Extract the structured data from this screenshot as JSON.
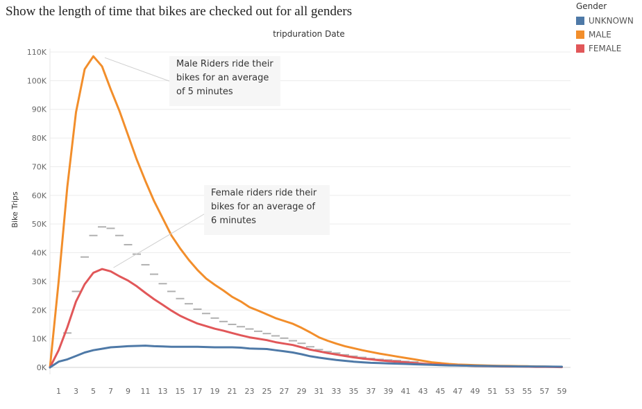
{
  "title": "Show the length of time that bikes are checked out for all genders",
  "legend": {
    "title": "Gender",
    "items": [
      {
        "label": "UNKNOWN",
        "color": "#4e79a7"
      },
      {
        "label": "MALE",
        "color": "#f28e2b"
      },
      {
        "label": "FEMALE",
        "color": "#e15759"
      }
    ]
  },
  "annotations": {
    "male": "Male Riders ride their bikes for an average of 5 minutes",
    "female": "Female riders ride their bikes for an average of 6 minutes"
  },
  "chart_data": {
    "type": "line",
    "title": "tripduration Date",
    "xlabel": "",
    "ylabel": "Bike Trips",
    "x": [
      0,
      1,
      2,
      3,
      4,
      5,
      6,
      7,
      8,
      9,
      10,
      11,
      12,
      13,
      14,
      15,
      16,
      17,
      18,
      19,
      20,
      21,
      22,
      23,
      24,
      25,
      26,
      27,
      28,
      29,
      30,
      31,
      32,
      33,
      34,
      35,
      36,
      37,
      38,
      39,
      40,
      41,
      42,
      43,
      44,
      45,
      46,
      47,
      48,
      49,
      50,
      51,
      52,
      53,
      54,
      55,
      56,
      57,
      58,
      59
    ],
    "x_tick_labels": [
      "1",
      "3",
      "5",
      "7",
      "9",
      "11",
      "13",
      "15",
      "17",
      "19",
      "21",
      "23",
      "25",
      "27",
      "29",
      "31",
      "33",
      "35",
      "37",
      "39",
      "41",
      "43",
      "45",
      "47",
      "49",
      "51",
      "53",
      "55",
      "57",
      "59"
    ],
    "x_tick_values": [
      1,
      3,
      5,
      7,
      9,
      11,
      13,
      15,
      17,
      19,
      21,
      23,
      25,
      27,
      29,
      31,
      33,
      35,
      37,
      39,
      41,
      43,
      45,
      47,
      49,
      51,
      53,
      55,
      57,
      59
    ],
    "ylim": [
      0,
      110000
    ],
    "y_ticks": [
      0,
      10000,
      20000,
      30000,
      40000,
      50000,
      60000,
      70000,
      80000,
      90000,
      100000,
      110000
    ],
    "y_tick_labels": [
      "0K",
      "10K",
      "20K",
      "30K",
      "40K",
      "50K",
      "60K",
      "70K",
      "80K",
      "90K",
      "100K",
      "110K"
    ],
    "grid": true,
    "legend_position": "top-right",
    "series": [
      {
        "name": "MALE",
        "color": "#f28e2b",
        "values": [
          0,
          30000,
          63000,
          89000,
          104000,
          108500,
          105000,
          97000,
          89500,
          81000,
          72500,
          65000,
          58000,
          52000,
          46000,
          41500,
          37500,
          34000,
          31000,
          28800,
          26800,
          24600,
          23000,
          21000,
          19800,
          18500,
          17200,
          16200,
          15200,
          13800,
          12200,
          10500,
          9300,
          8300,
          7400,
          6700,
          6000,
          5400,
          4800,
          4300,
          3800,
          3300,
          2800,
          2300,
          1800,
          1500,
          1200,
          1000,
          900,
          800,
          700,
          600,
          550,
          500,
          450,
          400,
          350,
          300,
          250,
          200
        ]
      },
      {
        "name": "FEMALE",
        "color": "#e15759",
        "values": [
          0,
          6000,
          14000,
          23000,
          29000,
          33000,
          34300,
          33500,
          31800,
          30300,
          28300,
          26000,
          23800,
          21800,
          19800,
          18000,
          16600,
          15300,
          14400,
          13500,
          12800,
          12000,
          11200,
          10500,
          10000,
          9500,
          8800,
          8300,
          7800,
          7000,
          6200,
          5600,
          5000,
          4500,
          4000,
          3500,
          3100,
          2800,
          2500,
          2200,
          2000,
          1800,
          1500,
          1300,
          1100,
          1000,
          800,
          700,
          600,
          500,
          450,
          400,
          350,
          300,
          300,
          250,
          200,
          200,
          150,
          100
        ]
      },
      {
        "name": "UNKNOWN",
        "color": "#4e79a7",
        "values": [
          0,
          2000,
          2800,
          4000,
          5200,
          6000,
          6500,
          7000,
          7200,
          7400,
          7500,
          7600,
          7400,
          7300,
          7200,
          7200,
          7200,
          7200,
          7100,
          7000,
          7000,
          7000,
          6900,
          6600,
          6500,
          6400,
          6000,
          5600,
          5200,
          4600,
          3900,
          3400,
          3000,
          2600,
          2300,
          2000,
          1800,
          1600,
          1500,
          1400,
          1300,
          1200,
          1100,
          1000,
          900,
          800,
          700,
          650,
          600,
          550,
          500,
          450,
          400,
          380,
          350,
          330,
          300,
          280,
          260,
          250
        ]
      }
    ],
    "reference_marks": [
      {
        "x": 2,
        "y": 12000
      },
      {
        "x": 3,
        "y": 26500
      },
      {
        "x": 4,
        "y": 38500
      },
      {
        "x": 5,
        "y": 46000
      },
      {
        "x": 6,
        "y": 49000
      },
      {
        "x": 7,
        "y": 48500
      },
      {
        "x": 8,
        "y": 46000
      },
      {
        "x": 9,
        "y": 42800
      },
      {
        "x": 10,
        "y": 39500
      },
      {
        "x": 11,
        "y": 35800
      },
      {
        "x": 12,
        "y": 32500
      },
      {
        "x": 13,
        "y": 29200
      },
      {
        "x": 14,
        "y": 26500
      },
      {
        "x": 15,
        "y": 24000
      },
      {
        "x": 16,
        "y": 22200
      },
      {
        "x": 17,
        "y": 20300
      },
      {
        "x": 18,
        "y": 18800
      },
      {
        "x": 19,
        "y": 17200
      },
      {
        "x": 20,
        "y": 16000
      },
      {
        "x": 21,
        "y": 15000
      },
      {
        "x": 22,
        "y": 14200
      },
      {
        "x": 23,
        "y": 13400
      },
      {
        "x": 24,
        "y": 12600
      },
      {
        "x": 25,
        "y": 11800
      },
      {
        "x": 26,
        "y": 11000
      },
      {
        "x": 27,
        "y": 10200
      },
      {
        "x": 28,
        "y": 9300
      },
      {
        "x": 29,
        "y": 8400
      },
      {
        "x": 30,
        "y": 7200
      },
      {
        "x": 31,
        "y": 6200
      },
      {
        "x": 32,
        "y": 5500
      },
      {
        "x": 33,
        "y": 5000
      },
      {
        "x": 34,
        "y": 4400
      },
      {
        "x": 35,
        "y": 3900
      },
      {
        "x": 36,
        "y": 3500
      },
      {
        "x": 37,
        "y": 3100
      },
      {
        "x": 38,
        "y": 2800
      },
      {
        "x": 39,
        "y": 2600
      },
      {
        "x": 40,
        "y": 2400
      },
      {
        "x": 41,
        "y": 2100
      },
      {
        "x": 42,
        "y": 1900
      }
    ],
    "reference_color": "#b0b0b0",
    "annotation_targets": {
      "male": {
        "x": 6,
        "y": 108500
      },
      "female": {
        "x": 7,
        "y": 34300
      }
    }
  }
}
